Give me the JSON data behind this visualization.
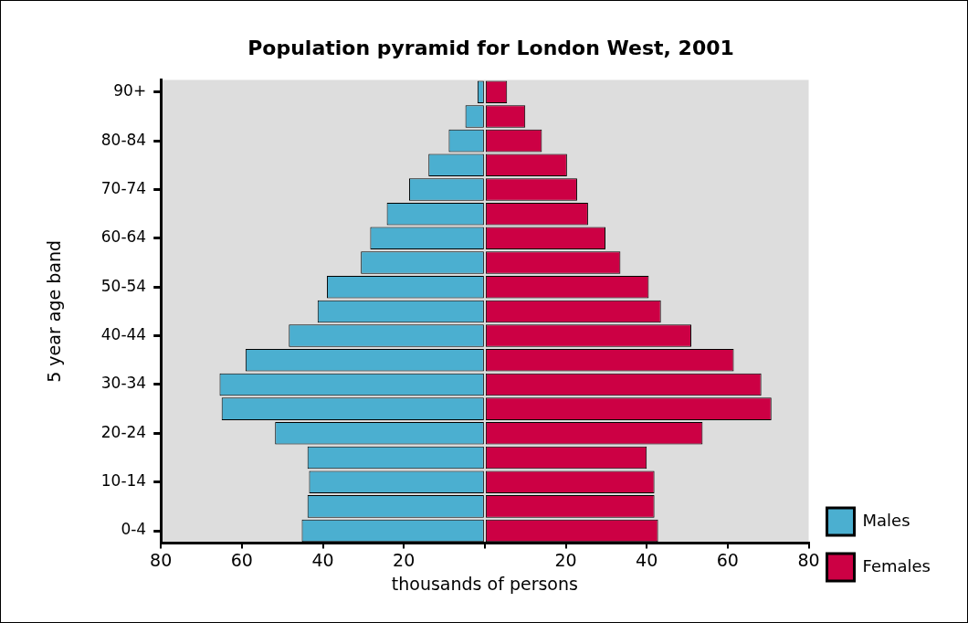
{
  "chart_data": {
    "type": "bar",
    "orientation": "horizontal",
    "stacked": true,
    "title": "Population pyramid for London West, 2001",
    "xlabel": "thousands of persons",
    "ylabel": "5 year age band",
    "categories": [
      "90+",
      null,
      "80-84",
      null,
      "70-74",
      null,
      "60-64",
      null,
      "50-54",
      null,
      "40-44",
      null,
      "30-34",
      null,
      "20-24",
      null,
      "10-14",
      null,
      "0-4"
    ],
    "series": [
      {
        "name": "Males",
        "color": "#4bafd0",
        "values": [
          -1.8,
          -4.8,
          -8.9,
          -13.9,
          -18.7,
          -24.2,
          -28.3,
          -30.6,
          -39,
          -41.3,
          -48.4,
          -59.1,
          -65.5,
          -65,
          -51.8,
          -43.8,
          -43.4,
          -43.8,
          -45.2
        ]
      },
      {
        "name": "Females",
        "color": "#cc0044",
        "values": [
          5.5,
          10,
          14.1,
          20.3,
          22.8,
          25.5,
          29.8,
          33.5,
          40.5,
          43.5,
          51,
          61.5,
          68.3,
          70.8,
          53.8,
          40,
          41.9,
          41.9,
          42.8
        ]
      }
    ],
    "xlim": [
      -80,
      80
    ],
    "xticks": [
      {
        "value": -80,
        "label": "80"
      },
      {
        "value": -60,
        "label": "60"
      },
      {
        "value": -40,
        "label": "40"
      },
      {
        "value": -20,
        "label": "20"
      },
      {
        "value": 0,
        "label": null
      },
      20,
      40,
      60,
      80
    ],
    "grid": false,
    "legend": "bottom right"
  }
}
